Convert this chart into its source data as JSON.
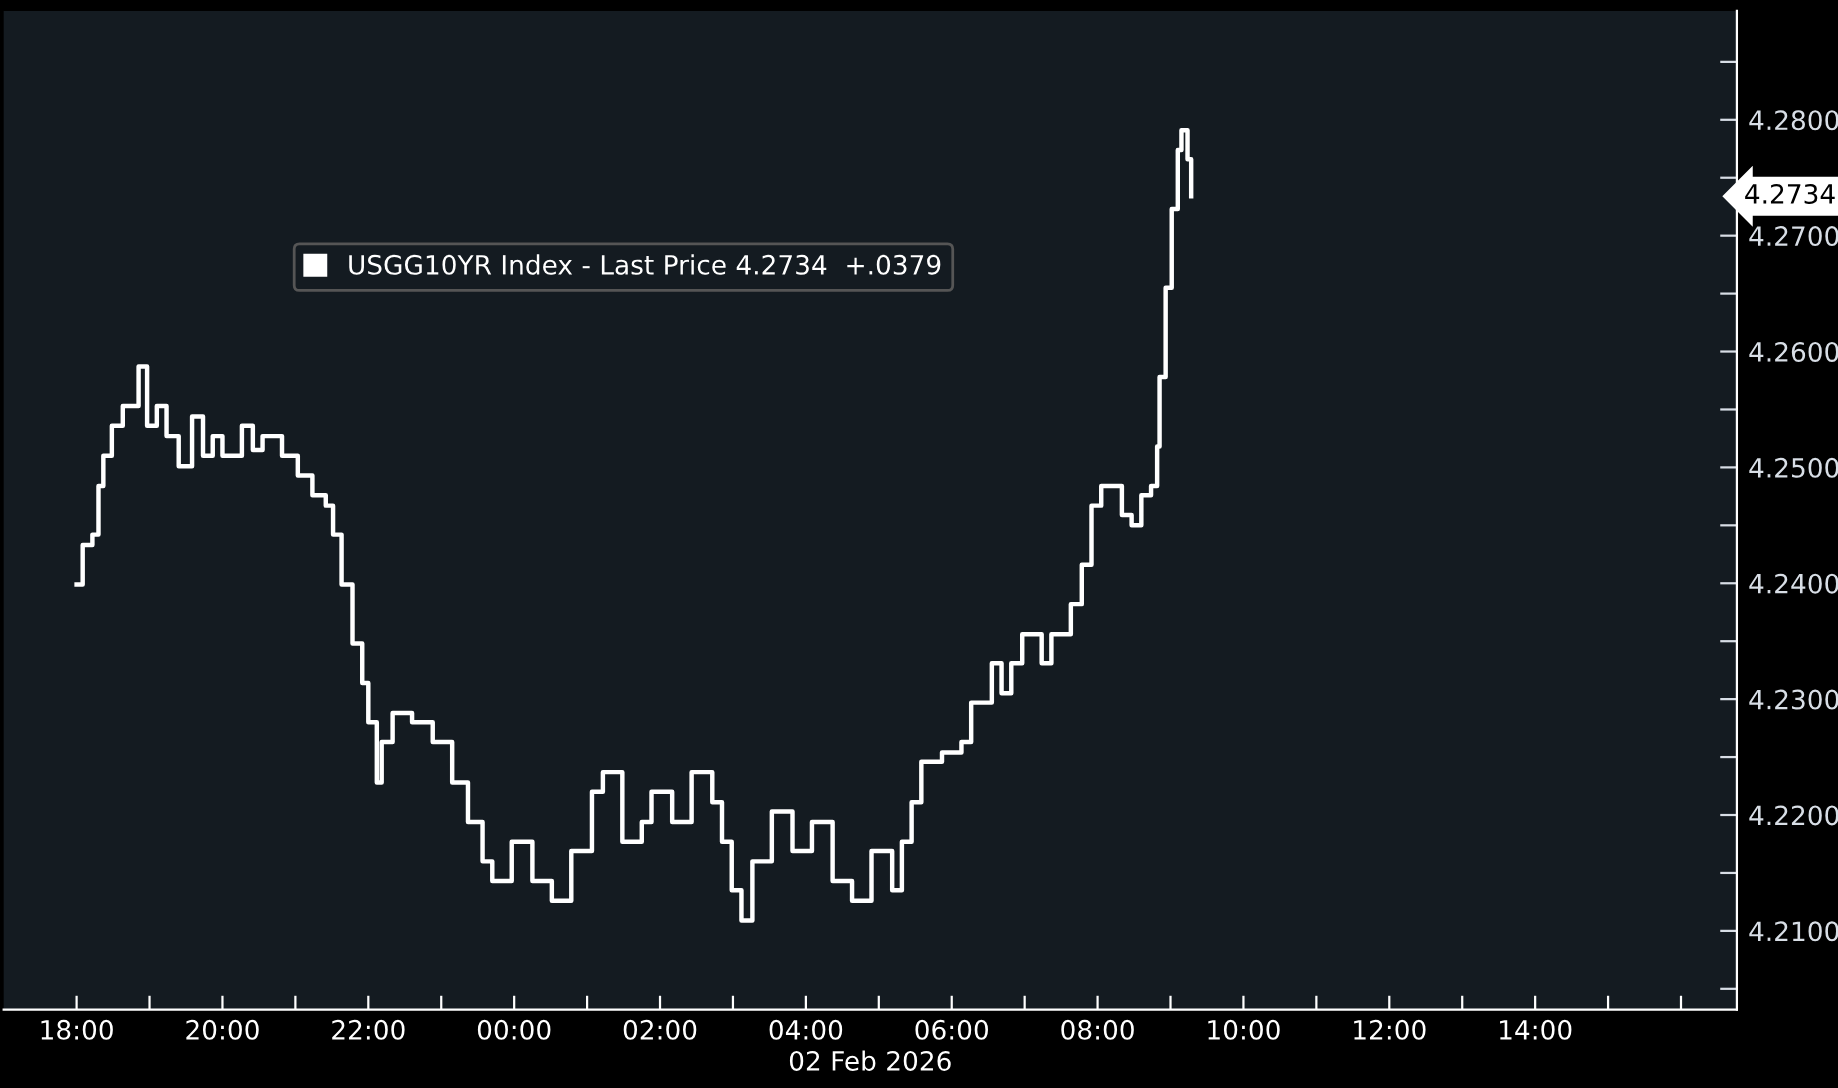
{
  "chart_data": {
    "type": "step",
    "xlabel": "02 Feb 2026",
    "series": [
      {
        "name": "USGG10YR Index - Last Price 4.2734  +.0379",
        "color": "#ffffff",
        "x": [
          "2026-02-01T18:00",
          "2026-02-01T18:05",
          "2026-02-01T18:13",
          "2026-02-01T18:18",
          "2026-02-01T18:22",
          "2026-02-01T18:29",
          "2026-02-01T18:38",
          "2026-02-01T18:51",
          "2026-02-01T18:58",
          "2026-02-01T19:06",
          "2026-02-01T19:14",
          "2026-02-01T19:24",
          "2026-02-01T19:35",
          "2026-02-01T19:44",
          "2026-02-01T19:52",
          "2026-02-01T20:00",
          "2026-02-01T20:16",
          "2026-02-01T20:25",
          "2026-02-01T20:33",
          "2026-02-01T20:49",
          "2026-02-01T21:02",
          "2026-02-01T21:14",
          "2026-02-01T21:25",
          "2026-02-01T21:31",
          "2026-02-01T21:38",
          "2026-02-01T21:47",
          "2026-02-01T21:55",
          "2026-02-01T22:00",
          "2026-02-01T22:07",
          "2026-02-01T22:11",
          "2026-02-01T22:20",
          "2026-02-01T22:36",
          "2026-02-01T22:53",
          "2026-02-01T23:09",
          "2026-02-01T23:22",
          "2026-02-01T23:34",
          "2026-02-01T23:42",
          "2026-02-01T23:58",
          "2026-02-02T00:15",
          "2026-02-02T00:31",
          "2026-02-02T00:47",
          "2026-02-02T01:04",
          "2026-02-02T01:13",
          "2026-02-02T01:29",
          "2026-02-02T01:45",
          "2026-02-02T01:53",
          "2026-02-02T02:10",
          "2026-02-02T02:26",
          "2026-02-02T02:43",
          "2026-02-02T02:51",
          "2026-02-02T02:59",
          "2026-02-02T03:07",
          "2026-02-02T03:16",
          "2026-02-02T03:32",
          "2026-02-02T03:49",
          "2026-02-02T04:05",
          "2026-02-02T04:22",
          "2026-02-02T04:38",
          "2026-02-02T04:54",
          "2026-02-02T05:11",
          "2026-02-02T05:19",
          "2026-02-02T05:27",
          "2026-02-02T05:35",
          "2026-02-02T05:52",
          "2026-02-02T06:08",
          "2026-02-02T06:16",
          "2026-02-02T06:33",
          "2026-02-02T06:41",
          "2026-02-02T06:49",
          "2026-02-02T06:58",
          "2026-02-02T07:14",
          "2026-02-02T07:22",
          "2026-02-02T07:38",
          "2026-02-02T07:47",
          "2026-02-02T07:55",
          "2026-02-02T08:03",
          "2026-02-02T08:20",
          "2026-02-02T08:28",
          "2026-02-02T08:36",
          "2026-02-02T08:44",
          "2026-02-02T08:49",
          "2026-02-02T08:51",
          "2026-02-02T08:56",
          "2026-02-02T09:01",
          "2026-02-02T09:06",
          "2026-02-02T09:09",
          "2026-02-02T09:14",
          "2026-02-02T09:17"
        ],
        "values": [
          4.2399,
          4.2433,
          4.2442,
          4.2484,
          4.251,
          4.2536,
          4.2553,
          4.2587,
          4.2536,
          4.2553,
          4.2527,
          4.2501,
          4.2544,
          4.251,
          4.2527,
          4.251,
          4.2536,
          4.2515,
          4.2527,
          4.251,
          4.2493,
          4.2476,
          4.2467,
          4.2442,
          4.2399,
          4.2348,
          4.2314,
          4.228,
          4.2228,
          4.2263,
          4.2288,
          4.228,
          4.2263,
          4.2228,
          4.2194,
          4.216,
          4.2143,
          4.2177,
          4.2143,
          4.2126,
          4.2169,
          4.222,
          4.2237,
          4.2177,
          4.2194,
          4.222,
          4.2194,
          4.2237,
          4.2211,
          4.2177,
          4.2135,
          4.2109,
          4.216,
          4.2203,
          4.2169,
          4.2194,
          4.2143,
          4.2126,
          4.2169,
          4.2135,
          4.2177,
          4.2211,
          4.2246,
          4.2254,
          4.2263,
          4.2297,
          4.2331,
          4.2305,
          4.2331,
          4.2356,
          4.2331,
          4.2356,
          4.2382,
          4.2416,
          4.2467,
          4.2484,
          4.2459,
          4.245,
          4.2476,
          4.2484,
          4.2518,
          4.2578,
          4.2655,
          4.2723,
          4.2774,
          4.2791,
          4.2766,
          4.2734
        ]
      }
    ],
    "annotations": [
      "4.2734"
    ],
    "xlim": [
      "2026-02-01T17:00",
      "2026-02-02T16:46"
    ],
    "xticks": [
      {
        "value": "2026-02-01T18:00",
        "label": "18:00"
      },
      {
        "value": "2026-02-01T19:00",
        "label": null
      },
      {
        "value": "2026-02-01T20:00",
        "label": "20:00"
      },
      {
        "value": "2026-02-01T21:00",
        "label": null
      },
      {
        "value": "2026-02-01T22:00",
        "label": "22:00"
      },
      {
        "value": "2026-02-01T23:00",
        "label": null
      },
      {
        "value": "2026-02-02T00:00",
        "label": "00:00"
      },
      {
        "value": "2026-02-02T01:00",
        "label": null
      },
      {
        "value": "2026-02-02T02:00",
        "label": "02:00"
      },
      {
        "value": "2026-02-02T03:00",
        "label": null
      },
      {
        "value": "2026-02-02T04:00",
        "label": "04:00"
      },
      {
        "value": "2026-02-02T05:00",
        "label": null
      },
      {
        "value": "2026-02-02T06:00",
        "label": "06:00"
      },
      {
        "value": "2026-02-02T07:00",
        "label": null
      },
      {
        "value": "2026-02-02T08:00",
        "label": "08:00"
      },
      {
        "value": "2026-02-02T09:00",
        "label": null
      },
      {
        "value": "2026-02-02T10:00",
        "label": "10:00"
      },
      {
        "value": "2026-02-02T11:00",
        "label": null
      },
      {
        "value": "2026-02-02T12:00",
        "label": "12:00"
      },
      {
        "value": "2026-02-02T13:00",
        "label": null
      },
      {
        "value": "2026-02-02T14:00",
        "label": "14:00"
      },
      {
        "value": "2026-02-02T15:00",
        "label": null
      },
      {
        "value": "2026-02-02T16:00",
        "label": null
      }
    ],
    "ylim": [
      4.2032,
      4.2894
    ],
    "yticks": [
      {
        "value": 4.205,
        "label": null
      },
      {
        "value": 4.21,
        "label": "4.2100"
      },
      {
        "value": 4.215,
        "label": null
      },
      {
        "value": 4.22,
        "label": "4.2200"
      },
      {
        "value": 4.225,
        "label": null
      },
      {
        "value": 4.23,
        "label": "4.2300"
      },
      {
        "value": 4.235,
        "label": null
      },
      {
        "value": 4.24,
        "label": "4.2400"
      },
      {
        "value": 4.245,
        "label": null
      },
      {
        "value": 4.25,
        "label": "4.2500"
      },
      {
        "value": 4.255,
        "label": null
      },
      {
        "value": 4.26,
        "label": "4.2600"
      },
      {
        "value": 4.265,
        "label": null
      },
      {
        "value": 4.27,
        "label": "4.2700"
      },
      {
        "value": 4.275,
        "label": null
      },
      {
        "value": 4.28,
        "label": "4.2800"
      },
      {
        "value": 4.285,
        "label": null
      }
    ],
    "legend": "top left"
  }
}
